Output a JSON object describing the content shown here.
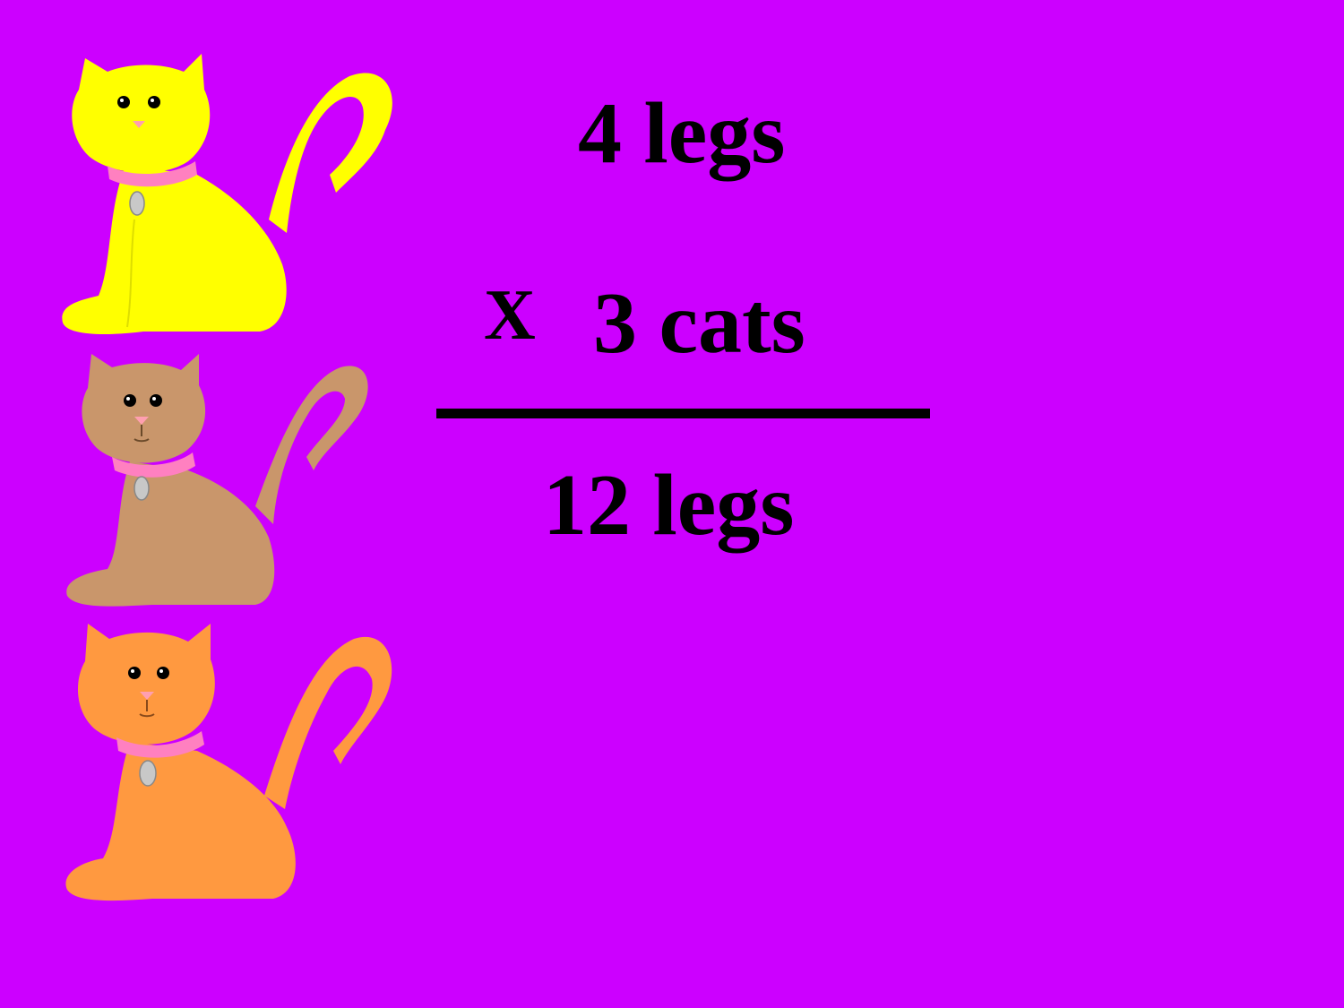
{
  "slide": {
    "background_color": "#CC00FF",
    "text_color": "#000000"
  },
  "equation": {
    "multiplicand": "4 legs",
    "operator": "X",
    "multiplier": "3 cats",
    "product": "12 legs"
  },
  "cats": [
    {
      "name": "yellow-cat",
      "color": "#FFFF00"
    },
    {
      "name": "tan-cat",
      "color": "#C9966B"
    },
    {
      "name": "orange-cat",
      "color": "#FF9940"
    }
  ]
}
